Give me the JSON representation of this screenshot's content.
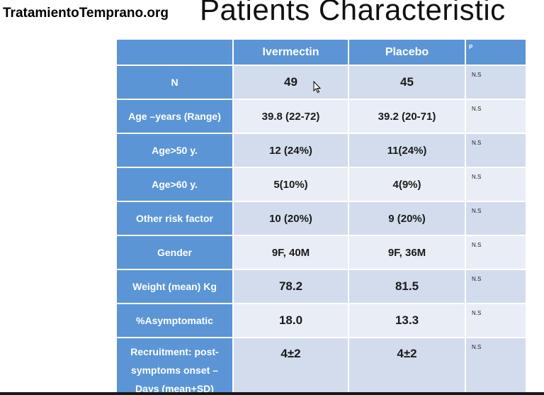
{
  "watermark": "TratamientoTemprano.org",
  "title": "Patients Characteristic",
  "table": {
    "headers": {
      "col0": "",
      "col1": "Ivermectin",
      "col2": "Placebo",
      "col3": "P"
    },
    "rows": [
      {
        "label": "N",
        "ivermectin": "49",
        "placebo": "45",
        "p": "N.S"
      },
      {
        "label": "Age –years (Range)",
        "ivermectin": "39.8 (22-72)",
        "placebo": "39.2 (20-71)",
        "p": "N.S"
      },
      {
        "label": "Age>50 y.",
        "ivermectin": "12 (24%)",
        "placebo": "11(24%)",
        "p": "N.S"
      },
      {
        "label": "Age>60 y.",
        "ivermectin": "5(10%)",
        "placebo": "4(9%)",
        "p": "N.S"
      },
      {
        "label": "Other risk factor",
        "ivermectin": "10 (20%)",
        "placebo": "9 (20%)",
        "p": "N.S"
      },
      {
        "label": "Gender",
        "ivermectin": "9F, 40M",
        "placebo": "9F, 36M",
        "p": "N.S"
      },
      {
        "label": "Weight (mean) Kg",
        "ivermectin": "78.2",
        "placebo": "81.5",
        "p": "N.S"
      },
      {
        "label": "%Asymptomatic",
        "ivermectin": "18.0",
        "placebo": "13.3",
        "p": "N.S"
      },
      {
        "label": "Recruitment: post-symptoms onset – Days (mean+SD)",
        "ivermectin": "4±2",
        "placebo": "4±2",
        "p": "N.S"
      }
    ]
  },
  "colors": {
    "header_blue": "#5b95d5",
    "cell_dark": "#d2dcec",
    "cell_light": "#e9eef6"
  },
  "icons": {
    "cursor": "mouse-pointer-icon"
  }
}
